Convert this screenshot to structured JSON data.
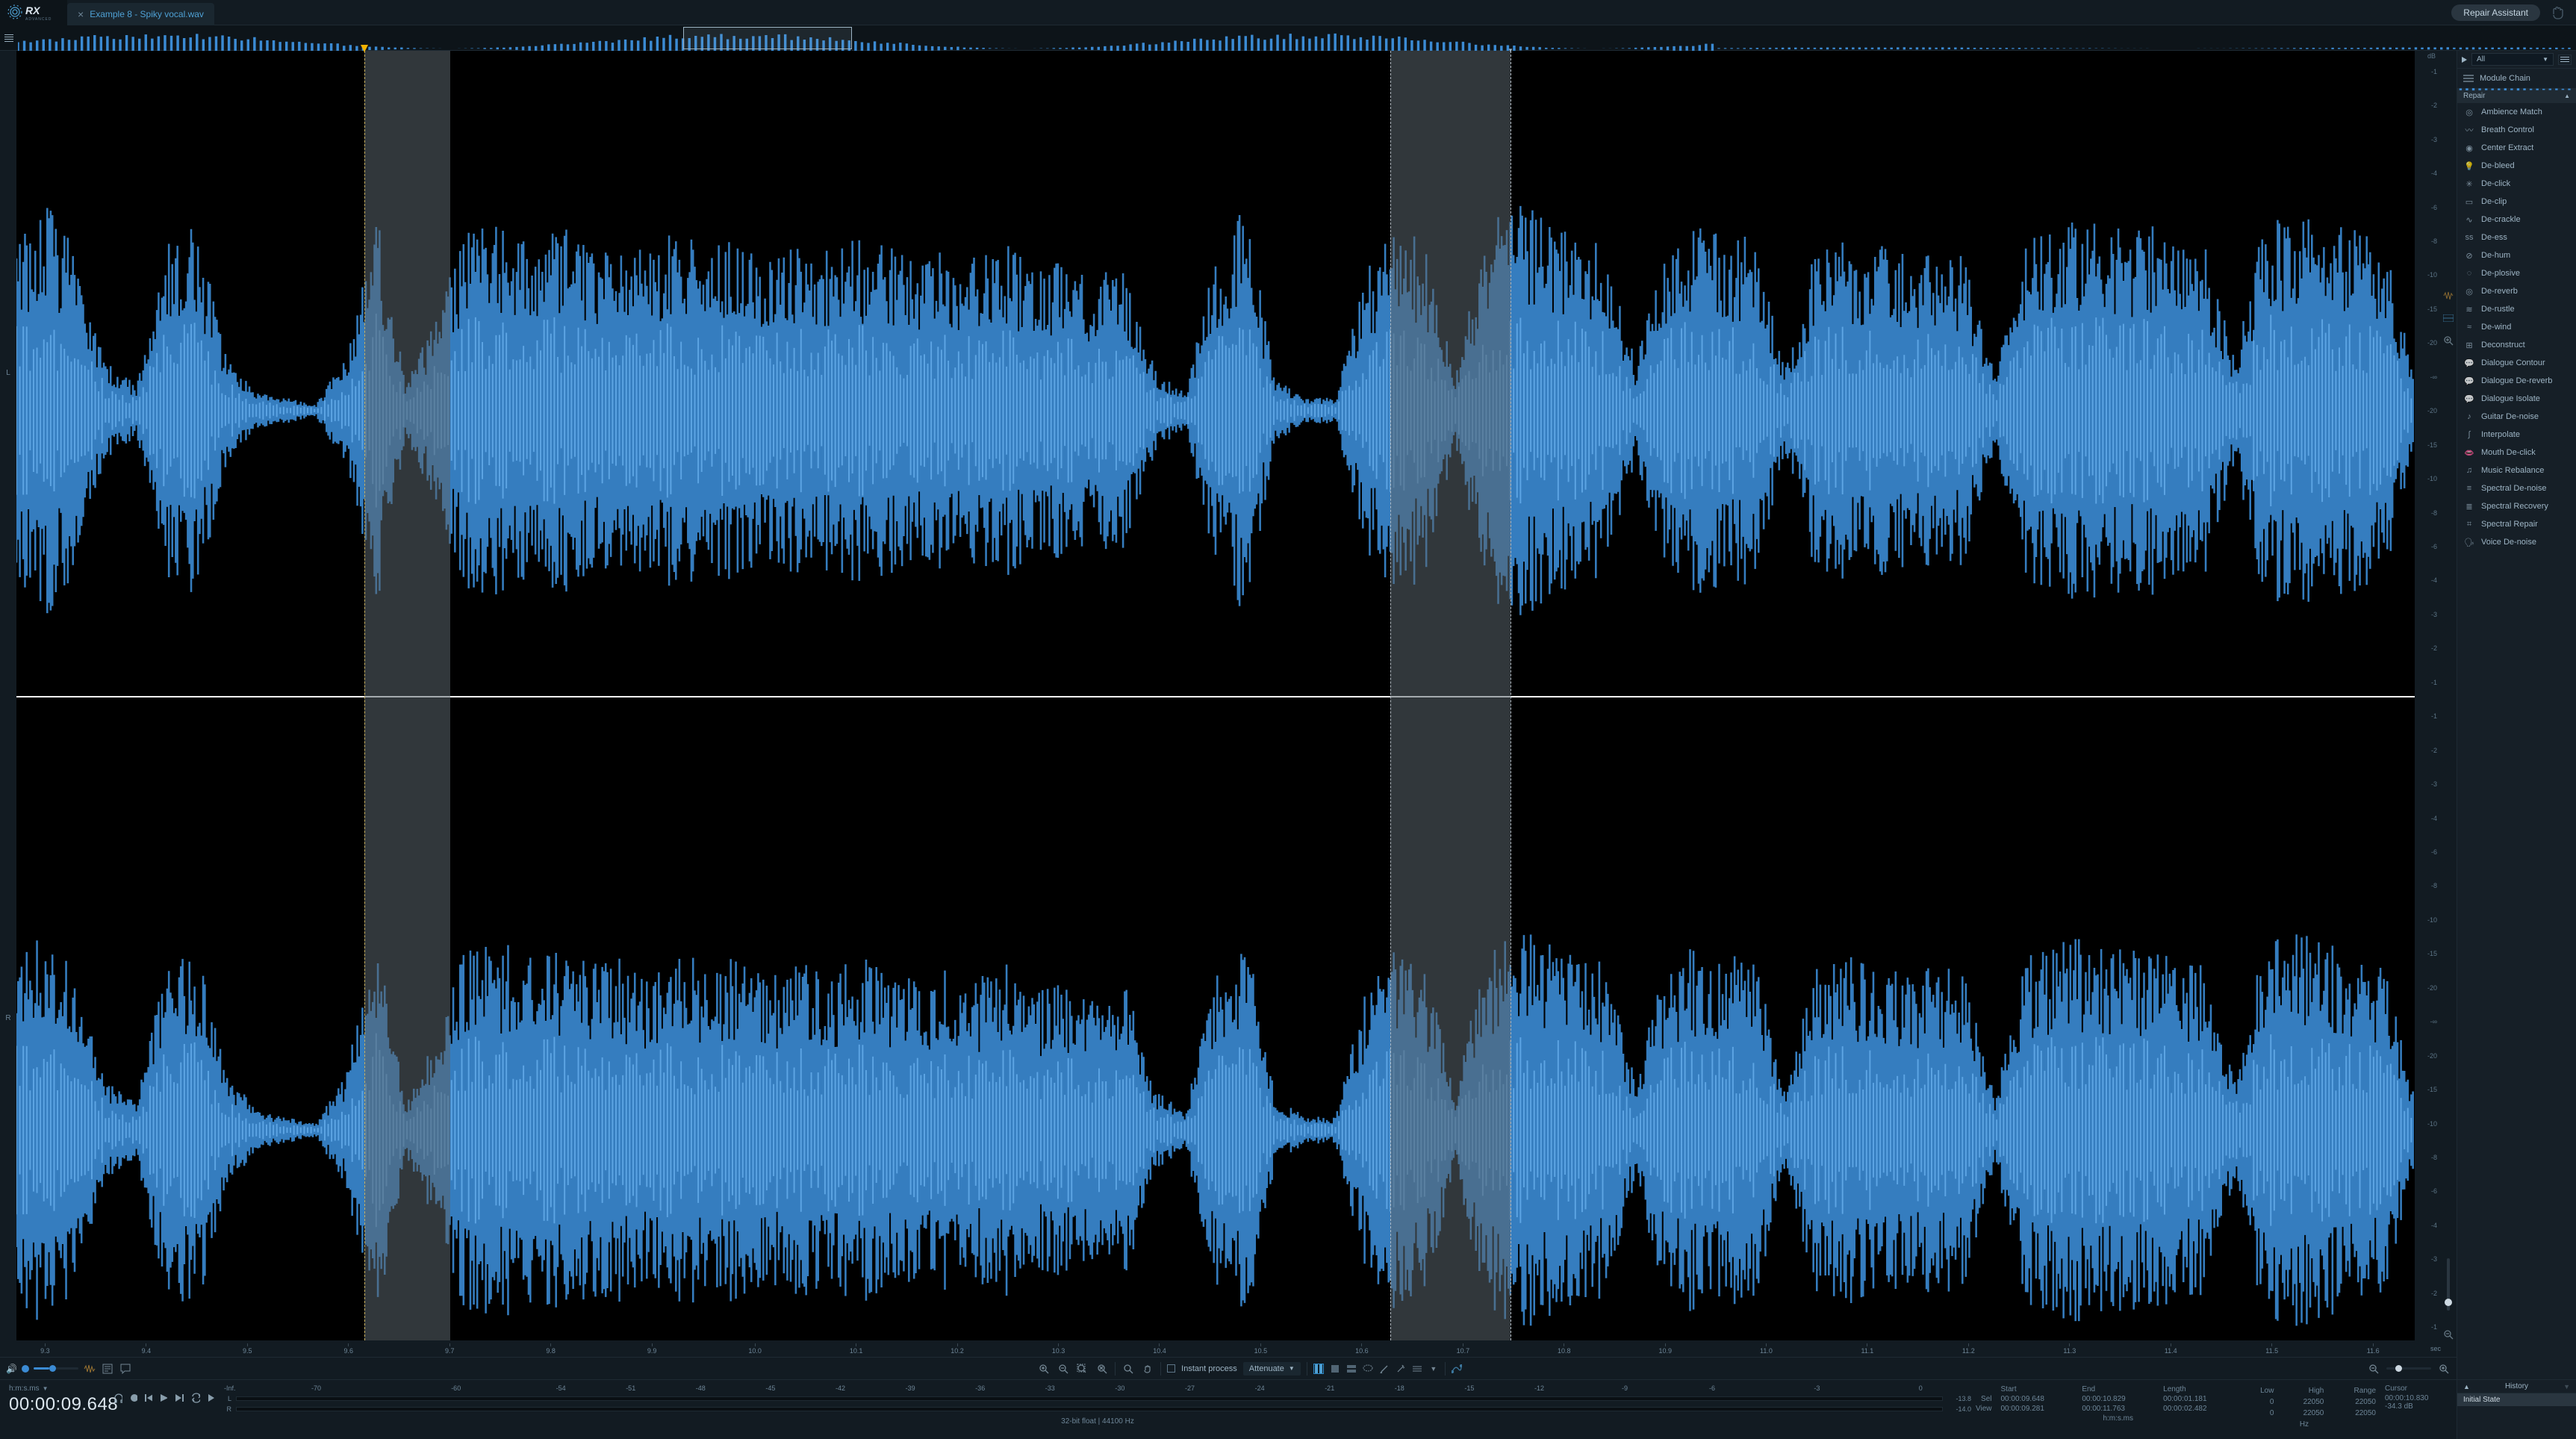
{
  "app": {
    "name": "RX",
    "edition": "ADVANCED"
  },
  "tab": {
    "title": "Example 8 - Spiky vocal.wav"
  },
  "repair_assistant_label": "Repair Assistant",
  "overview": {
    "view_start_pct": 26.0,
    "view_width_pct": 6.6
  },
  "waveform": {
    "channels": [
      "L",
      "R"
    ],
    "db_unit": "dB",
    "db_ticks_top": [
      "-1",
      "-2",
      "-3",
      "-4",
      "-6",
      "-8",
      "-10",
      "-15",
      "-20",
      "-∞",
      "-20",
      "-15",
      "-10",
      "-8",
      "-6",
      "-4",
      "-3",
      "-2",
      "-1"
    ],
    "db_ticks_bot": [
      "-1",
      "-2",
      "-3",
      "-4",
      "-6",
      "-8",
      "-10",
      "-15",
      "-20",
      "-∞",
      "-20",
      "-15",
      "-10",
      "-8",
      "-6",
      "-4",
      "-3",
      "-2",
      "-1"
    ],
    "time_ticks": [
      "9.3",
      "9.4",
      "9.5",
      "9.6",
      "9.7",
      "9.8",
      "9.9",
      "10.0",
      "10.1",
      "10.2",
      "10.3",
      "10.4",
      "10.5",
      "10.6",
      "10.7",
      "10.8",
      "10.9",
      "11.0",
      "11.1",
      "11.2",
      "11.3",
      "11.4",
      "11.5",
      "11.6"
    ],
    "time_unit": "sec",
    "playhead_pct": 14.5,
    "selection_a": {
      "start_pct": 14.5,
      "end_pct": 18.1
    },
    "selection_b": {
      "start_pct": 57.3,
      "end_pct": 62.3
    },
    "waveform_color": "#3b8bd4",
    "waveform_highlight": "#6eb6f5",
    "envelope": [
      0.55,
      0.62,
      0.48,
      0.15,
      0.08,
      0.5,
      0.55,
      0.18,
      0.06,
      0.04,
      0.02,
      0.18,
      0.6,
      0.08,
      0.28,
      0.55,
      0.58,
      0.52,
      0.56,
      0.5,
      0.52,
      0.48,
      0.54,
      0.5,
      0.52,
      0.46,
      0.5,
      0.48,
      0.52,
      0.5,
      0.44,
      0.48,
      0.46,
      0.5,
      0.42,
      0.45,
      0.4,
      0.44,
      0.12,
      0.06,
      0.46,
      0.62,
      0.1,
      0.04,
      0.04,
      0.42,
      0.55,
      0.5,
      0.1,
      0.55,
      0.62,
      0.58,
      0.54,
      0.5,
      0.15,
      0.5,
      0.55,
      0.52,
      0.54,
      0.12,
      0.48,
      0.52,
      0.5,
      0.48,
      0.5,
      0.46,
      0.1,
      0.52,
      0.56,
      0.58,
      0.54,
      0.56,
      0.52,
      0.5,
      0.15,
      0.58,
      0.6,
      0.56,
      0.54,
      0.5,
      0.1
    ]
  },
  "toolbar": {
    "volume_pct": 35,
    "instant_process_label": "Instant process",
    "process_mode": "Attenuate"
  },
  "right_panel": {
    "filter_label": "All",
    "module_chain_label": "Module Chain",
    "section_label": "Repair",
    "modules": [
      "Ambience Match",
      "Breath Control",
      "Center Extract",
      "De-bleed",
      "De-click",
      "De-clip",
      "De-crackle",
      "De-ess",
      "De-hum",
      "De-plosive",
      "De-reverb",
      "De-rustle",
      "De-wind",
      "Deconstruct",
      "Dialogue Contour",
      "Dialogue De-reverb",
      "Dialogue Isolate",
      "Guitar De-noise",
      "Interpolate",
      "Mouth De-click",
      "Music Rebalance",
      "Spectral De-noise",
      "Spectral Recovery",
      "Spectral Repair",
      "Voice De-noise"
    ]
  },
  "footer": {
    "time_format": "h:m:s.ms",
    "time_display": "00:00:09.648",
    "meter_ticks": [
      "-Inf.",
      "-70",
      "-60",
      "-54",
      "-51",
      "-48",
      "-45",
      "-42",
      "-39",
      "-36",
      "-33",
      "-30",
      "-27",
      "-24",
      "-21",
      "-18",
      "-15",
      "-12",
      "-9",
      "-6",
      "-3",
      "0"
    ],
    "meter_ticks_pct": [
      0,
      5,
      13,
      19,
      23,
      27,
      31,
      35,
      39,
      43,
      47,
      51,
      55,
      59,
      63,
      67,
      71,
      75,
      80,
      85,
      91,
      97
    ],
    "peak_L": "-13.8",
    "peak_R": "-14.0",
    "format_line": "32-bit float | 44100 Hz",
    "sel": {
      "headers": [
        "Start",
        "End",
        "Length"
      ],
      "rows": [
        {
          "label": "Sel",
          "start": "00:00:09.648",
          "end": "00:00:10.829",
          "length": "00:00:01.181"
        },
        {
          "label": "View",
          "start": "00:00:09.281",
          "end": "00:00:11.763",
          "length": "00:00:02.482"
        }
      ],
      "unit_label": "h:m:s.ms"
    },
    "freq": {
      "headers": [
        "Low",
        "High",
        "Range"
      ],
      "rows": [
        [
          "0",
          "22050",
          "22050"
        ],
        [
          "0",
          "22050",
          "22050"
        ]
      ],
      "unit_label": "Hz"
    },
    "cursor": {
      "header": "Cursor",
      "time": "00:00:10.830",
      "db": "-34.3 dB"
    },
    "history": {
      "header": "History",
      "items": [
        "Initial State"
      ]
    }
  }
}
